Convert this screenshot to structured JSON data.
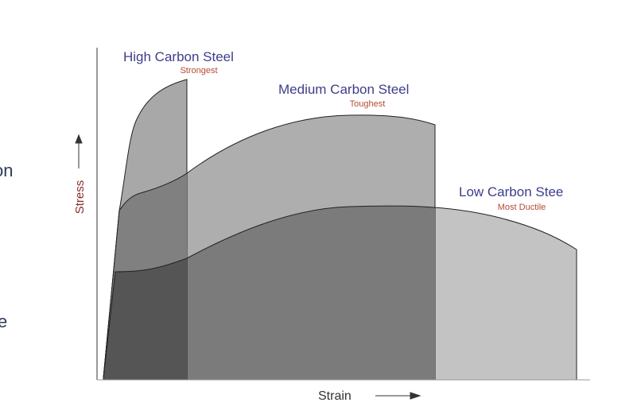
{
  "fragments": {
    "left_top": "on",
    "left_bottom": "e"
  },
  "curves": [
    {
      "label": "High Carbon Steel",
      "note": "Strongest"
    },
    {
      "label": "Medium Carbon Steel",
      "note": "Toughest"
    },
    {
      "label": "Low Carbon Stee",
      "note": "Most Ductile"
    }
  ],
  "axes": {
    "y_label": "Stress",
    "x_label": "Strain"
  }
}
